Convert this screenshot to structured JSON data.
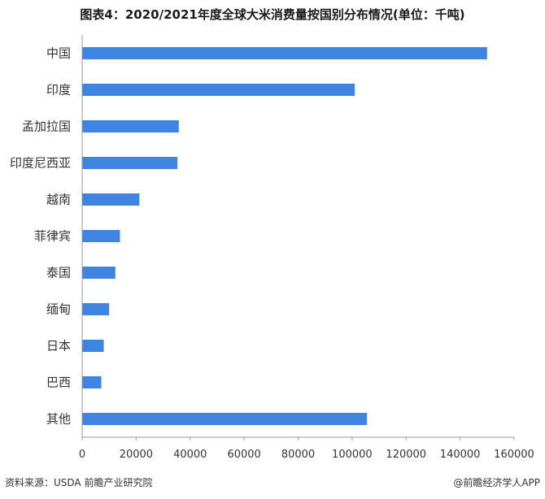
{
  "title": "图表4：2020/2021年度全球大米消费量按国别分布情况(单位：千吨)",
  "footer_source": "资料来源：USDA 前瞻产业研究院",
  "footer_credit": "@前瞻经济学人APP",
  "colors": {
    "bar": "#3f84e0",
    "axis": "#999999",
    "text": "#333333"
  },
  "chart_data": {
    "type": "bar",
    "orientation": "horizontal",
    "categories": [
      "中国",
      "印度",
      "孟加拉国",
      "印度尼西亚",
      "越南",
      "菲律宾",
      "泰国",
      "缅甸",
      "日本",
      "巴西",
      "其他"
    ],
    "values": [
      150000,
      101000,
      35800,
      35300,
      21200,
      14000,
      12300,
      10000,
      8000,
      7100,
      105500
    ],
    "xlim": [
      0,
      160000
    ],
    "xticks": [
      0,
      20000,
      40000,
      60000,
      80000,
      100000,
      120000,
      140000,
      160000
    ],
    "grid": false,
    "legend": "none"
  }
}
